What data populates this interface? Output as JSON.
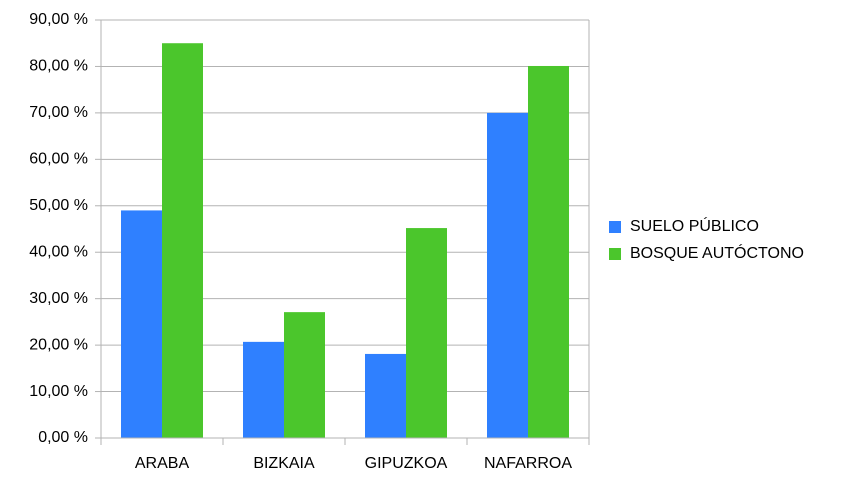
{
  "chart_data": {
    "type": "bar",
    "categories": [
      "ARABA",
      "BIZKAIA",
      "GIPUZKOA",
      "NAFARROA"
    ],
    "series": [
      {
        "name": "SUELO PÚBLICO",
        "color": "#2f80ff",
        "values": [
          49,
          20.7,
          18.1,
          70
        ]
      },
      {
        "name": "BOSQUE AUTÓCTONO",
        "color": "#4bc62c",
        "values": [
          85,
          27.1,
          45.2,
          80.1
        ]
      }
    ],
    "ylim": [
      0,
      90
    ],
    "yticks": [
      {
        "value": 0,
        "label": "0,00 %"
      },
      {
        "value": 10,
        "label": "10,00 %"
      },
      {
        "value": 20,
        "label": "20,00 %"
      },
      {
        "value": 30,
        "label": "30,00 %"
      },
      {
        "value": 40,
        "label": "40,00 %"
      },
      {
        "value": 50,
        "label": "50,00 %"
      },
      {
        "value": 60,
        "label": "60,00 %"
      },
      {
        "value": 70,
        "label": "70,00 %"
      },
      {
        "value": 80,
        "label": "80,00 %"
      },
      {
        "value": 90,
        "label": "90,00 %"
      }
    ],
    "grid": true,
    "legend": "right"
  }
}
